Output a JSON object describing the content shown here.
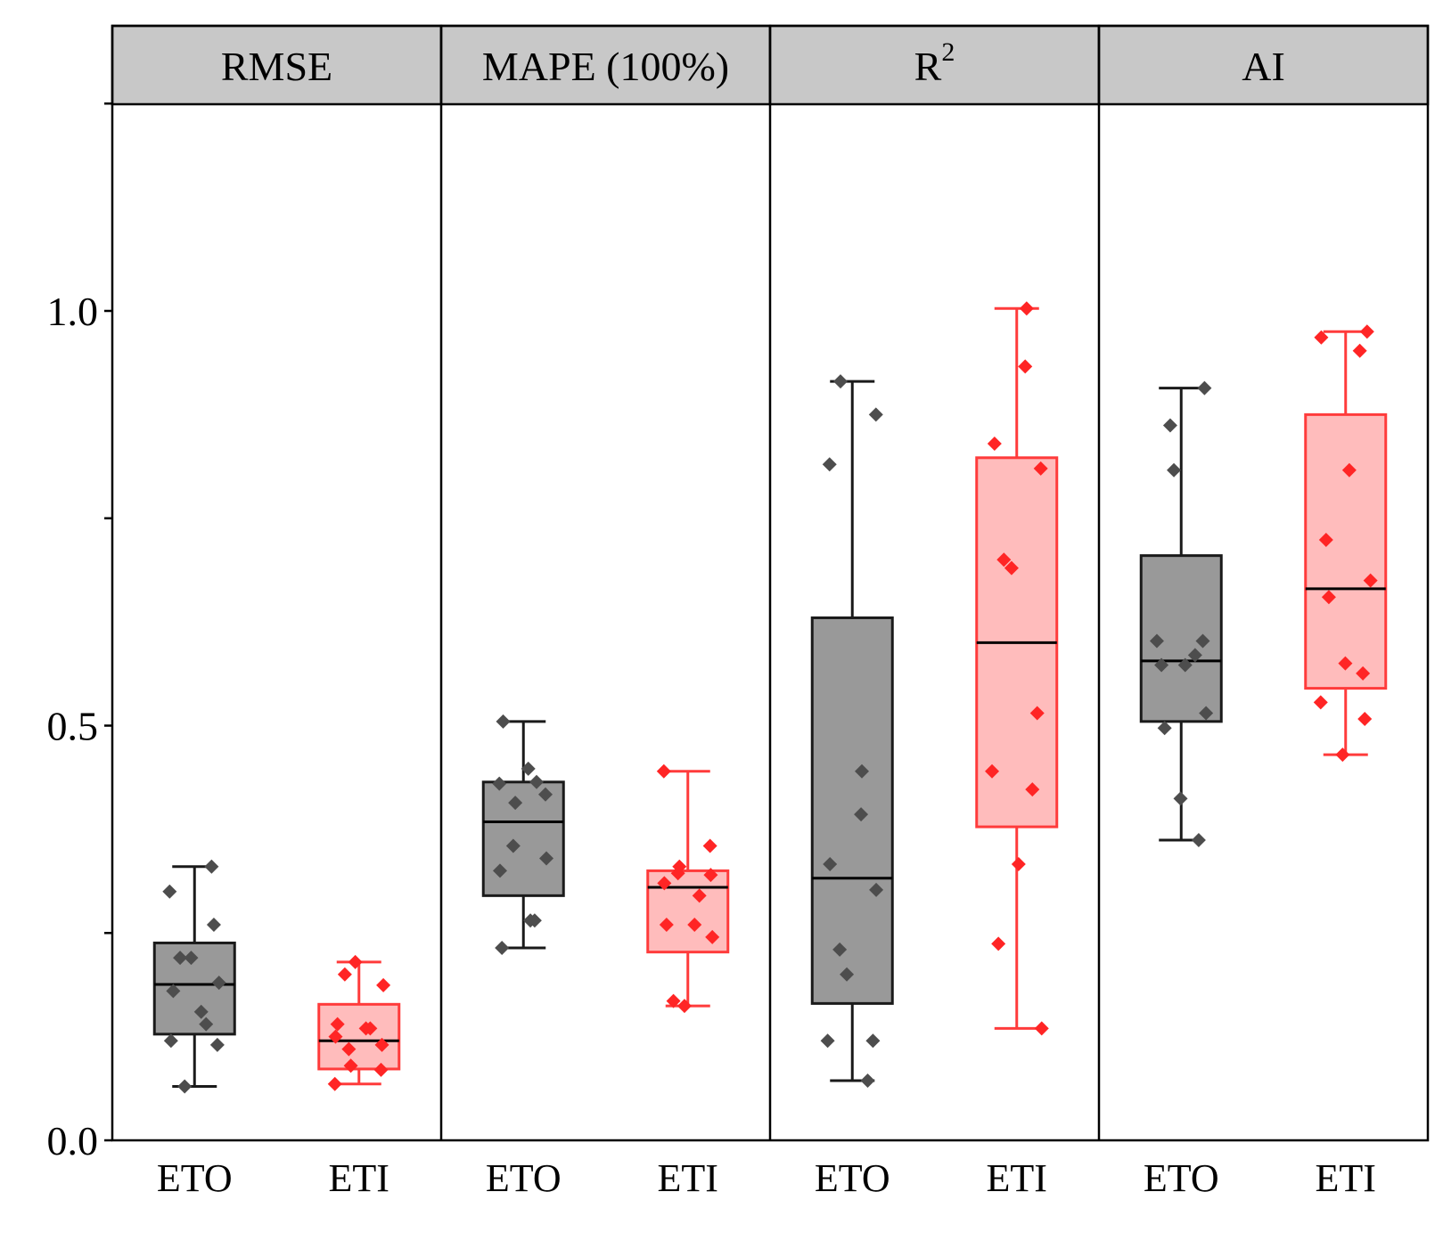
{
  "chart_data": {
    "type": "box",
    "title": "",
    "xlabel": "",
    "ylabel": "",
    "ylim": [
      0.0,
      1.35
    ],
    "yticks": [
      {
        "value": 0.0,
        "label": "0.0"
      },
      {
        "value": 0.25,
        "label": ""
      },
      {
        "value": 0.5,
        "label": "0.5"
      },
      {
        "value": 0.75,
        "label": ""
      },
      {
        "value": 1.0,
        "label": "1.0"
      },
      {
        "value": 1.25,
        "label": ""
      }
    ],
    "colors": {
      "ETO": {
        "box": "#999999",
        "edge": "#1a1a1a",
        "point": "#4d4d4d",
        "median": "#000000"
      },
      "ETI": {
        "box": "#ffbcbc",
        "edge": "#ff3b3b",
        "point": "#ff2525",
        "median": "#000000"
      },
      "header": "#c8c8c8"
    },
    "panels": [
      {
        "title": "RMSE",
        "title_sup": "",
        "groups": [
          {
            "name": "ETO",
            "whisker_low": 0.065,
            "q1": 0.128,
            "median": 0.188,
            "q3": 0.238,
            "whisker_high": 0.33,
            "points": [
              0.33,
              0.3,
              0.26,
              0.22,
              0.22,
              0.19,
              0.18,
              0.155,
              0.14,
              0.12,
              0.115,
              0.065
            ]
          },
          {
            "name": "ETI",
            "whisker_low": 0.068,
            "q1": 0.086,
            "median": 0.12,
            "q3": 0.164,
            "whisker_high": 0.215,
            "points": [
              0.215,
              0.2,
              0.187,
              0.14,
              0.135,
              0.135,
              0.125,
              0.115,
              0.11,
              0.09,
              0.085,
              0.068
            ]
          }
        ]
      },
      {
        "title": "MAPE (100%)",
        "title_sup": "",
        "groups": [
          {
            "name": "ETO",
            "whisker_low": 0.232,
            "q1": 0.295,
            "median": 0.384,
            "q3": 0.432,
            "whisker_high": 0.505,
            "points": [
              0.505,
              0.448,
              0.432,
              0.43,
              0.417,
              0.407,
              0.355,
              0.34,
              0.325,
              0.265,
              0.265,
              0.232
            ]
          },
          {
            "name": "ETI",
            "whisker_low": 0.162,
            "q1": 0.227,
            "median": 0.305,
            "q3": 0.325,
            "whisker_high": 0.445,
            "points": [
              0.445,
              0.355,
              0.33,
              0.322,
              0.32,
              0.31,
              0.295,
              0.26,
              0.26,
              0.245,
              0.168,
              0.162
            ]
          }
        ]
      },
      {
        "title": "R",
        "title_sup": "2",
        "groups": [
          {
            "name": "ETO",
            "whisker_low": 0.072,
            "q1": 0.165,
            "median": 0.316,
            "q3": 0.63,
            "whisker_high": 0.915,
            "points": [
              0.915,
              0.875,
              0.815,
              0.445,
              0.393,
              0.333,
              0.302,
              0.23,
              0.2,
              0.12,
              0.12,
              0.072
            ]
          },
          {
            "name": "ETI",
            "whisker_low": 0.135,
            "q1": 0.378,
            "median": 0.6,
            "q3": 0.823,
            "whisker_high": 1.003,
            "points": [
              1.003,
              0.933,
              0.84,
              0.81,
              0.7,
              0.69,
              0.515,
              0.445,
              0.423,
              0.333,
              0.237,
              0.135
            ]
          }
        ]
      },
      {
        "title": "AI",
        "title_sup": "",
        "groups": [
          {
            "name": "ETO",
            "whisker_low": 0.362,
            "q1": 0.505,
            "median": 0.578,
            "q3": 0.705,
            "whisker_high": 0.907,
            "points": [
              0.907,
              0.862,
              0.808,
              0.602,
              0.602,
              0.585,
              0.573,
              0.573,
              0.515,
              0.497,
              0.412,
              0.362
            ]
          },
          {
            "name": "ETI",
            "whisker_low": 0.465,
            "q1": 0.545,
            "median": 0.665,
            "q3": 0.875,
            "whisker_high": 0.975,
            "points": [
              0.975,
              0.968,
              0.952,
              0.808,
              0.724,
              0.675,
              0.655,
              0.575,
              0.563,
              0.528,
              0.508,
              0.465
            ]
          }
        ]
      }
    ]
  }
}
